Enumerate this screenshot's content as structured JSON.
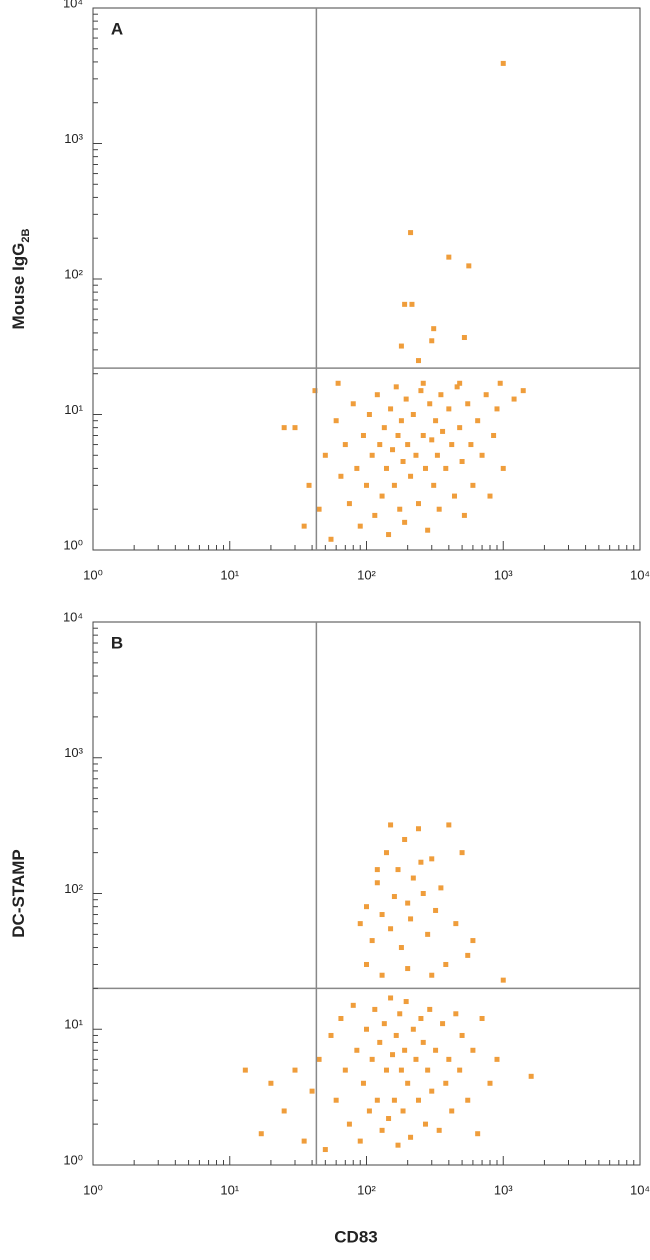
{
  "chart_data": [
    {
      "type": "scatter",
      "panel": "A",
      "ylabel": "Mouse IgG",
      "ylabel_sub": "2B",
      "color": "#ef9d3b",
      "log": true,
      "xlim": [
        1,
        10000
      ],
      "ylim": [
        1,
        10000
      ],
      "xticks": [
        {
          "value": 1,
          "label": "10⁰"
        },
        {
          "value": 10,
          "label": "10¹"
        },
        {
          "value": 100,
          "label": "10²"
        },
        {
          "value": 1000,
          "label": "10³"
        },
        {
          "value": 10000,
          "label": "10⁴"
        }
      ],
      "yticks": [
        {
          "value": 1,
          "label": "10⁰"
        },
        {
          "value": 10,
          "label": "10¹"
        },
        {
          "value": 100,
          "label": "10²"
        },
        {
          "value": 1000,
          "label": "10³"
        },
        {
          "value": 10000,
          "label": "10⁴"
        }
      ],
      "minor_ticks": [
        2,
        3,
        4,
        5,
        6,
        7,
        8,
        9
      ],
      "quadrant": {
        "x": 43,
        "y": 22
      },
      "x": [
        35,
        38,
        30,
        45,
        50,
        55,
        60,
        65,
        70,
        75,
        80,
        85,
        90,
        95,
        100,
        105,
        110,
        115,
        120,
        125,
        130,
        135,
        140,
        145,
        150,
        155,
        160,
        165,
        170,
        175,
        180,
        185,
        190,
        195,
        200,
        210,
        220,
        230,
        240,
        250,
        260,
        270,
        280,
        290,
        300,
        310,
        320,
        330,
        340,
        350,
        360,
        380,
        400,
        420,
        440,
        460,
        480,
        500,
        520,
        550,
        580,
        600,
        650,
        700,
        750,
        800,
        850,
        900,
        1000,
        1200,
        1400,
        25,
        42,
        62,
        260,
        480,
        950,
        1000,
        210,
        400,
        560,
        190,
        215,
        310,
        300,
        520,
        180,
        240
      ],
      "values": [
        1.5,
        3,
        8,
        2,
        5,
        1.2,
        9,
        3.5,
        6,
        2.2,
        12,
        4,
        1.5,
        7,
        3,
        10,
        5,
        1.8,
        14,
        6,
        2.5,
        8,
        4,
        1.3,
        11,
        5.5,
        3,
        16,
        7,
        2,
        9,
        4.5,
        1.6,
        13,
        6,
        3.5,
        10,
        5,
        2.2,
        15,
        7,
        4,
        1.4,
        12,
        6.5,
        3,
        9,
        5,
        2,
        14,
        7.5,
        4,
        11,
        6,
        2.5,
        16,
        8,
        4.5,
        1.8,
        12,
        6,
        3,
        9,
        5,
        14,
        2.5,
        7,
        11,
        4,
        13,
        15,
        8,
        15,
        17,
        17,
        17,
        17,
        3900,
        220,
        145,
        125,
        65,
        65,
        43,
        35,
        37,
        32,
        25
      ]
    },
    {
      "type": "scatter",
      "panel": "B",
      "ylabel": "DC-STAMP",
      "xlabel": "CD83",
      "color": "#ef9d3b",
      "log": true,
      "xlim": [
        1,
        10000
      ],
      "ylim": [
        1,
        10000
      ],
      "xticks": [
        {
          "value": 1,
          "label": "10⁰"
        },
        {
          "value": 10,
          "label": "10¹"
        },
        {
          "value": 100,
          "label": "10²"
        },
        {
          "value": 1000,
          "label": "10³"
        },
        {
          "value": 10000,
          "label": "10⁴"
        }
      ],
      "yticks": [
        {
          "value": 1,
          "label": "10⁰"
        },
        {
          "value": 10,
          "label": "10¹"
        },
        {
          "value": 100,
          "label": "10²"
        },
        {
          "value": 1000,
          "label": "10³"
        },
        {
          "value": 10000,
          "label": "10⁴"
        }
      ],
      "minor_ticks": [
        2,
        3,
        4,
        5,
        6,
        7,
        8,
        9
      ],
      "quadrant": {
        "x": 43,
        "y": 20
      },
      "x": [
        13,
        17,
        20,
        25,
        30,
        35,
        40,
        45,
        50,
        55,
        60,
        65,
        70,
        75,
        80,
        85,
        90,
        95,
        100,
        105,
        110,
        115,
        120,
        125,
        130,
        135,
        140,
        145,
        150,
        155,
        160,
        165,
        170,
        175,
        180,
        185,
        190,
        195,
        200,
        210,
        220,
        230,
        240,
        250,
        260,
        270,
        280,
        290,
        300,
        320,
        340,
        360,
        380,
        400,
        420,
        450,
        480,
        500,
        550,
        600,
        650,
        700,
        800,
        900,
        1600,
        90,
        100,
        110,
        120,
        130,
        140,
        150,
        160,
        170,
        180,
        190,
        200,
        210,
        220,
        240,
        260,
        280,
        300,
        320,
        350,
        400,
        450,
        500,
        550,
        600,
        100,
        130,
        200,
        300,
        380,
        1000,
        150,
        120,
        250
      ],
      "values": [
        5,
        1.7,
        4,
        2.5,
        5,
        1.5,
        3.5,
        6,
        1.3,
        9,
        3,
        12,
        5,
        2,
        15,
        7,
        1.5,
        4,
        10,
        2.5,
        6,
        14,
        3,
        8,
        1.8,
        11,
        5,
        2.2,
        17,
        6.5,
        3,
        9,
        1.4,
        13,
        5,
        2.5,
        7,
        16,
        4,
        1.6,
        10,
        6,
        3,
        12,
        8,
        2,
        5,
        14,
        3.5,
        7,
        1.8,
        11,
        4,
        6,
        2.5,
        13,
        5,
        9,
        3,
        7,
        1.7,
        12,
        4,
        6,
        4.5,
        60,
        80,
        45,
        120,
        70,
        200,
        55,
        95,
        150,
        40,
        250,
        85,
        65,
        130,
        300,
        100,
        50,
        180,
        75,
        110,
        320,
        60,
        200,
        35,
        45,
        30,
        25,
        28,
        25,
        30,
        23,
        320,
        150,
        170
      ]
    }
  ]
}
